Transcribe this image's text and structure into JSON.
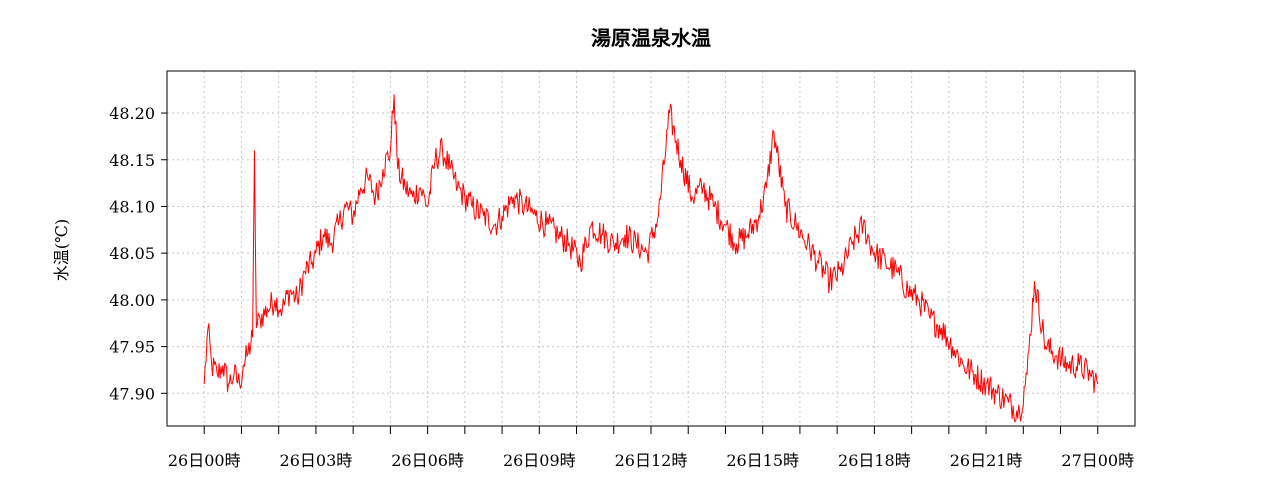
{
  "chart_data": {
    "type": "line",
    "title": "湯原温泉水温",
    "xlabel": "",
    "ylabel": "水温(℃)",
    "x_range_hours": [
      -1,
      25
    ],
    "ylim": [
      47.865,
      48.245
    ],
    "y_ticks": [
      "47.90",
      "47.95",
      "48.00",
      "48.05",
      "48.10",
      "48.15",
      "48.20"
    ],
    "x_tick_labels": [
      {
        "hour": 0,
        "label": "26日00時"
      },
      {
        "hour": 3,
        "label": "26日03時"
      },
      {
        "hour": 6,
        "label": "26日06時"
      },
      {
        "hour": 9,
        "label": "26日09時"
      },
      {
        "hour": 12,
        "label": "26日12時"
      },
      {
        "hour": 15,
        "label": "26日15時"
      },
      {
        "hour": 18,
        "label": "26日18時"
      },
      {
        "hour": 21,
        "label": "26日21時"
      },
      {
        "hour": 24,
        "label": "27日00時"
      }
    ],
    "grid": true,
    "line_color": "#ff0000",
    "series": [
      {
        "x": [
          0.0,
          0.1,
          0.2,
          0.35,
          0.5,
          0.65,
          0.8,
          0.95,
          1.05,
          1.15,
          1.3,
          1.35,
          1.4,
          1.5,
          1.7,
          1.9,
          2.1,
          2.3,
          2.5,
          2.7,
          2.9,
          3.0,
          3.2,
          3.4,
          3.6,
          3.8,
          4.0,
          4.2,
          4.4,
          4.6,
          4.8,
          5.0,
          5.1,
          5.2,
          5.4,
          5.6,
          5.8,
          6.0,
          6.2,
          6.4,
          6.6,
          6.8,
          7.0,
          7.2,
          7.5,
          7.8,
          8.0,
          8.3,
          8.6,
          8.9,
          9.2,
          9.5,
          9.8,
          10.1,
          10.4,
          10.7,
          11.0,
          11.3,
          11.6,
          11.9,
          12.2,
          12.5,
          12.8,
          13.1,
          13.4,
          13.7,
          14.0,
          14.3,
          14.6,
          14.9,
          15.1,
          15.3,
          15.6,
          15.9,
          16.2,
          16.5,
          16.8,
          17.1,
          17.4,
          17.7,
          18.0,
          18.3,
          18.6,
          18.9,
          19.2,
          19.5,
          19.8,
          20.1,
          20.4,
          20.7,
          21.0,
          21.3,
          21.6,
          21.9,
          22.1,
          22.3,
          22.6,
          22.9,
          23.2,
          23.5,
          23.8,
          24.0
        ],
        "values": [
          47.91,
          47.97,
          47.93,
          47.92,
          47.93,
          47.91,
          47.92,
          47.91,
          47.93,
          47.94,
          47.96,
          48.16,
          47.97,
          47.98,
          47.99,
          48.0,
          47.99,
          48.01,
          48.0,
          48.03,
          48.04,
          48.05,
          48.07,
          48.06,
          48.08,
          48.1,
          48.09,
          48.12,
          48.13,
          48.11,
          48.14,
          48.16,
          48.22,
          48.14,
          48.12,
          48.11,
          48.12,
          48.1,
          48.15,
          48.16,
          48.14,
          48.12,
          48.11,
          48.1,
          48.09,
          48.08,
          48.09,
          48.11,
          48.1,
          48.09,
          48.08,
          48.07,
          48.06,
          48.04,
          48.08,
          48.07,
          48.06,
          48.07,
          48.06,
          48.05,
          48.09,
          48.2,
          48.15,
          48.11,
          48.12,
          48.1,
          48.08,
          48.06,
          48.07,
          48.09,
          48.12,
          48.18,
          48.1,
          48.08,
          48.06,
          48.04,
          48.02,
          48.03,
          48.06,
          48.08,
          48.05,
          48.04,
          48.03,
          48.01,
          48.0,
          47.98,
          47.97,
          47.95,
          47.93,
          47.92,
          47.91,
          47.9,
          47.89,
          47.88,
          47.92,
          48.02,
          47.95,
          47.94,
          47.93,
          47.93,
          47.92,
          47.91
        ]
      }
    ]
  }
}
